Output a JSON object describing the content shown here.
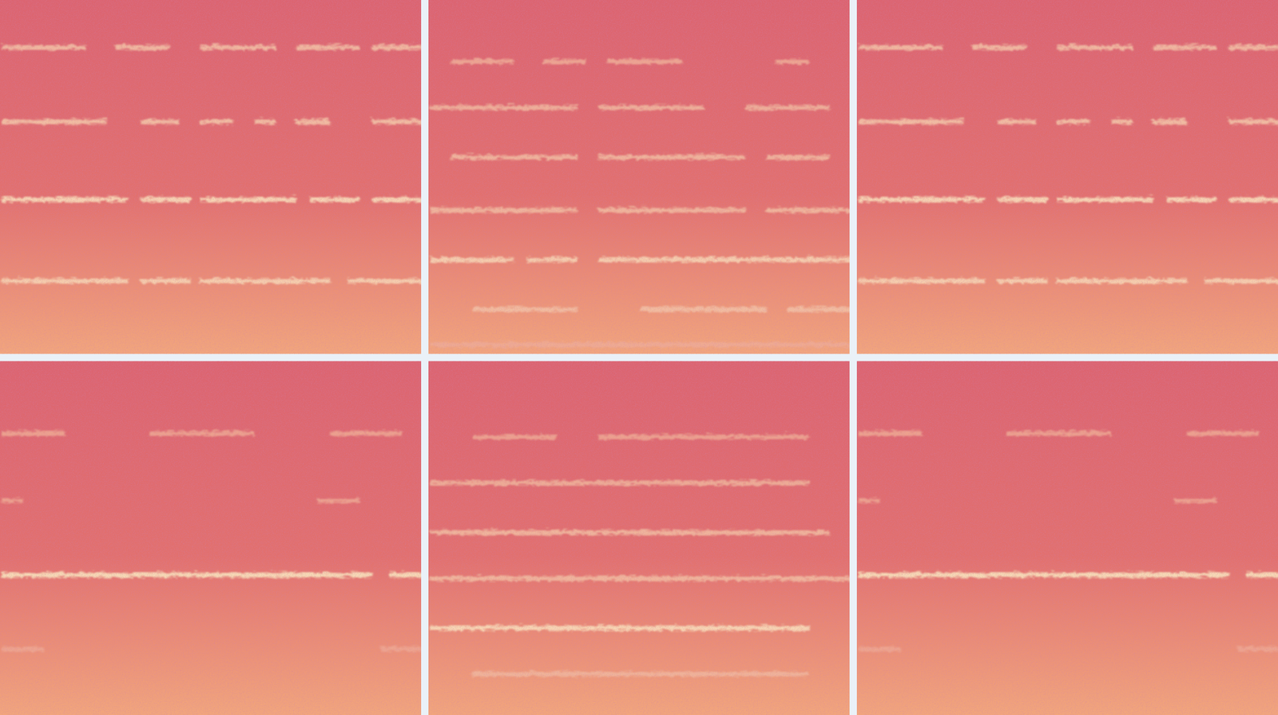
{
  "chart_data": [
    {
      "type": "spectrogram",
      "tick_labels": false,
      "xlim": [
        0,
        1
      ],
      "ylim": [
        0,
        1
      ],
      "zlim": [
        0,
        1
      ],
      "bands": [
        {
          "y": 0.87,
          "intensity": 0.55,
          "segments": [
            [
              0.0,
              0.2
            ],
            [
              0.27,
              0.4
            ],
            [
              0.47,
              0.65
            ],
            [
              0.7,
              0.85
            ],
            [
              0.88,
              1.0
            ]
          ]
        },
        {
          "y": 0.66,
          "intensity": 0.6,
          "segments": [
            [
              0.0,
              0.25
            ],
            [
              0.33,
              0.42
            ],
            [
              0.47,
              0.55
            ],
            [
              0.6,
              0.65
            ],
            [
              0.7,
              0.78
            ],
            [
              0.88,
              1.0
            ]
          ]
        },
        {
          "y": 0.44,
          "intensity": 0.85,
          "segments": [
            [
              0.0,
              0.3
            ],
            [
              0.33,
              0.45
            ],
            [
              0.47,
              0.7
            ],
            [
              0.73,
              0.85
            ],
            [
              0.88,
              1.0
            ]
          ]
        },
        {
          "y": 0.21,
          "intensity": 0.75,
          "segments": [
            [
              0.0,
              0.3
            ],
            [
              0.33,
              0.45
            ],
            [
              0.47,
              0.78
            ],
            [
              0.82,
              1.0
            ]
          ]
        }
      ]
    },
    {
      "type": "spectrogram",
      "tick_labels": false,
      "xlim": [
        0,
        1
      ],
      "ylim": [
        0,
        1
      ],
      "zlim": [
        0,
        1
      ],
      "bands": [
        {
          "y": 0.83,
          "intensity": 0.35,
          "segments": [
            [
              0.05,
              0.2
            ],
            [
              0.27,
              0.37
            ],
            [
              0.42,
              0.6
            ],
            [
              0.82,
              0.9
            ]
          ]
        },
        {
          "y": 0.7,
          "intensity": 0.45,
          "segments": [
            [
              0.0,
              0.35
            ],
            [
              0.4,
              0.65
            ],
            [
              0.75,
              0.95
            ]
          ]
        },
        {
          "y": 0.56,
          "intensity": 0.5,
          "segments": [
            [
              0.05,
              0.35
            ],
            [
              0.4,
              0.75
            ],
            [
              0.8,
              0.95
            ]
          ]
        },
        {
          "y": 0.41,
          "intensity": 0.5,
          "segments": [
            [
              0.0,
              0.35
            ],
            [
              0.4,
              0.75
            ],
            [
              0.8,
              1.0
            ]
          ]
        },
        {
          "y": 0.27,
          "intensity": 0.75,
          "segments": [
            [
              0.0,
              0.2
            ],
            [
              0.23,
              0.35
            ],
            [
              0.4,
              0.8
            ],
            [
              0.8,
              1.0
            ]
          ]
        },
        {
          "y": 0.13,
          "intensity": 0.55,
          "segments": [
            [
              0.1,
              0.35
            ],
            [
              0.5,
              0.8
            ],
            [
              0.85,
              1.0
            ]
          ]
        },
        {
          "y": 0.03,
          "intensity": 0.35,
          "segments": [
            [
              0.0,
              1.0
            ]
          ]
        }
      ]
    },
    {
      "type": "spectrogram",
      "tick_labels": false,
      "xlim": [
        0,
        1
      ],
      "ylim": [
        0,
        1
      ],
      "zlim": [
        0,
        1
      ],
      "bands": [
        {
          "y": 0.87,
          "intensity": 0.55,
          "segments": [
            [
              0.0,
              0.2
            ],
            [
              0.27,
              0.4
            ],
            [
              0.47,
              0.65
            ],
            [
              0.7,
              0.85
            ],
            [
              0.88,
              1.0
            ]
          ]
        },
        {
          "y": 0.66,
          "intensity": 0.6,
          "segments": [
            [
              0.0,
              0.25
            ],
            [
              0.33,
              0.42
            ],
            [
              0.47,
              0.55
            ],
            [
              0.6,
              0.65
            ],
            [
              0.7,
              0.78
            ],
            [
              0.88,
              1.0
            ]
          ]
        },
        {
          "y": 0.44,
          "intensity": 0.85,
          "segments": [
            [
              0.0,
              0.3
            ],
            [
              0.33,
              0.45
            ],
            [
              0.47,
              0.7
            ],
            [
              0.73,
              0.85
            ],
            [
              0.88,
              1.0
            ]
          ]
        },
        {
          "y": 0.21,
          "intensity": 0.75,
          "segments": [
            [
              0.0,
              0.3
            ],
            [
              0.33,
              0.45
            ],
            [
              0.47,
              0.78
            ],
            [
              0.82,
              1.0
            ]
          ]
        }
      ]
    },
    {
      "type": "spectrogram",
      "tick_labels": false,
      "xlim": [
        0,
        1
      ],
      "ylim": [
        0,
        1
      ],
      "zlim": [
        0,
        1
      ],
      "bands": [
        {
          "y": 0.8,
          "intensity": 0.3,
          "segments": [
            [
              0.0,
              0.15
            ],
            [
              0.35,
              0.6
            ],
            [
              0.78,
              0.95
            ]
          ]
        },
        {
          "y": 0.61,
          "intensity": 0.3,
          "segments": [
            [
              0.0,
              0.05
            ],
            [
              0.75,
              0.85
            ]
          ]
        },
        {
          "y": 0.4,
          "intensity": 0.9,
          "segments": [
            [
              0.0,
              0.88
            ],
            [
              0.92,
              1.0
            ]
          ]
        },
        {
          "y": 0.19,
          "intensity": 0.3,
          "segments": [
            [
              0.0,
              0.1
            ],
            [
              0.9,
              1.0
            ]
          ]
        }
      ]
    },
    {
      "type": "spectrogram",
      "tick_labels": false,
      "xlim": [
        0,
        1
      ],
      "ylim": [
        0,
        1
      ],
      "zlim": [
        0,
        1
      ],
      "bands": [
        {
          "y": 0.79,
          "intensity": 0.3,
          "segments": [
            [
              0.1,
              0.3
            ],
            [
              0.4,
              0.9
            ]
          ]
        },
        {
          "y": 0.66,
          "intensity": 0.4,
          "segments": [
            [
              0.0,
              0.9
            ]
          ]
        },
        {
          "y": 0.52,
          "intensity": 0.5,
          "segments": [
            [
              0.0,
              0.95
            ]
          ]
        },
        {
          "y": 0.39,
          "intensity": 0.5,
          "segments": [
            [
              0.0,
              1.0
            ]
          ]
        },
        {
          "y": 0.25,
          "intensity": 0.85,
          "segments": [
            [
              0.0,
              0.9
            ]
          ]
        },
        {
          "y": 0.12,
          "intensity": 0.45,
          "segments": [
            [
              0.1,
              0.9
            ]
          ]
        }
      ]
    },
    {
      "type": "spectrogram",
      "tick_labels": false,
      "xlim": [
        0,
        1
      ],
      "ylim": [
        0,
        1
      ],
      "zlim": [
        0,
        1
      ],
      "bands": [
        {
          "y": 0.8,
          "intensity": 0.3,
          "segments": [
            [
              0.0,
              0.15
            ],
            [
              0.35,
              0.6
            ],
            [
              0.78,
              0.95
            ]
          ]
        },
        {
          "y": 0.61,
          "intensity": 0.3,
          "segments": [
            [
              0.0,
              0.05
            ],
            [
              0.75,
              0.85
            ]
          ]
        },
        {
          "y": 0.4,
          "intensity": 0.9,
          "segments": [
            [
              0.0,
              0.88
            ],
            [
              0.92,
              1.0
            ]
          ]
        },
        {
          "y": 0.19,
          "intensity": 0.3,
          "segments": [
            [
              0.0,
              0.1
            ],
            [
              0.9,
              1.0
            ]
          ]
        }
      ]
    }
  ]
}
